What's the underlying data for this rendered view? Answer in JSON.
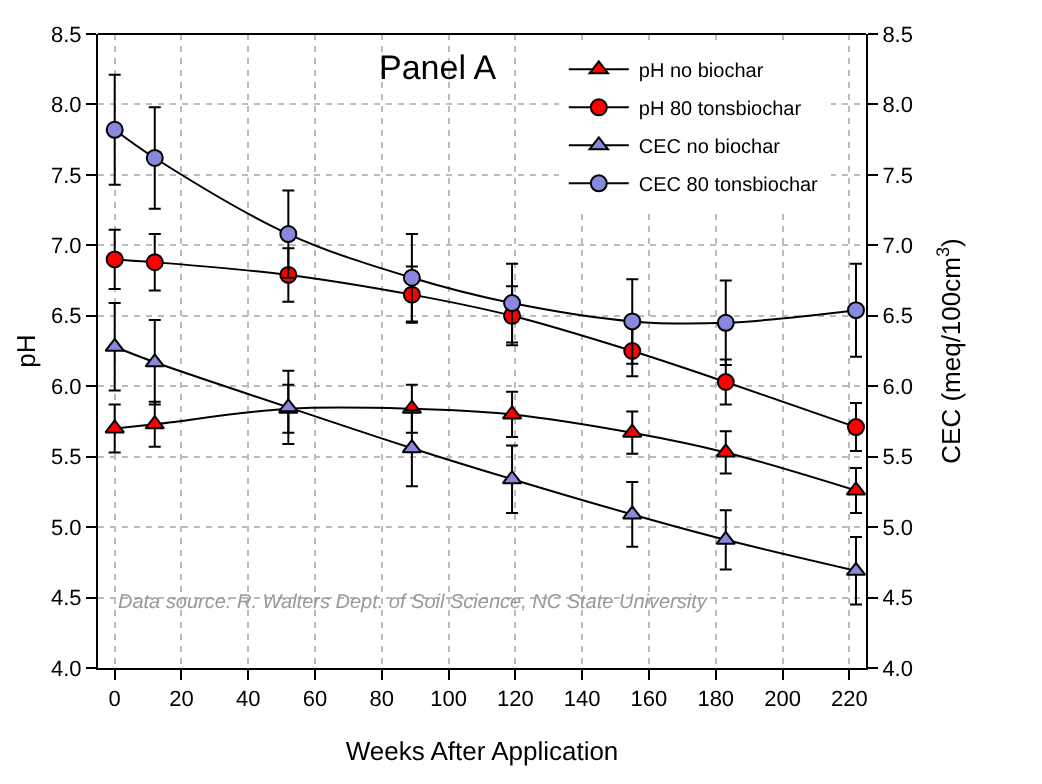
{
  "chart_data": {
    "type": "line",
    "title": "Panel A",
    "xlabel": "Weeks After Application",
    "ylabel": "pH",
    "y2label": "CEC (meq/100cm$^{3}$)",
    "x": [
      0,
      12,
      52,
      89,
      119,
      155,
      183,
      222
    ],
    "series": [
      {
        "name": "pH no biochar",
        "color": "#ff0000",
        "marker": "triangle",
        "values": [
          5.7,
          5.73,
          5.84,
          5.84,
          5.8,
          5.67,
          5.53,
          5.26
        ],
        "errors": [
          0.17,
          0.16,
          0.17,
          0.17,
          0.16,
          0.15,
          0.15,
          0.16
        ]
      },
      {
        "name": "pH 80 tonsbiochar",
        "color": "#ff0000",
        "marker": "circle",
        "values": [
          6.9,
          6.88,
          6.79,
          6.65,
          6.5,
          6.25,
          6.03,
          5.71
        ],
        "errors": [
          0.21,
          0.2,
          0.19,
          0.2,
          0.21,
          0.18,
          0.16,
          0.17
        ]
      },
      {
        "name": "CEC no biochar",
        "color": "#8888dd",
        "marker": "triangle",
        "axis": "y2",
        "values": [
          6.28,
          6.17,
          5.85,
          5.56,
          5.34,
          5.09,
          4.91,
          4.69
        ],
        "errors": [
          0.31,
          0.3,
          0.26,
          0.27,
          0.24,
          0.23,
          0.21,
          0.24
        ]
      },
      {
        "name": "CEC 80 tonsbiochar",
        "color": "#8888dd",
        "marker": "circle",
        "axis": "y2",
        "values": [
          7.82,
          7.62,
          7.08,
          6.77,
          6.59,
          6.46,
          6.45,
          6.54
        ],
        "errors": [
          0.39,
          0.36,
          0.31,
          0.31,
          0.28,
          0.3,
          0.3,
          0.33
        ]
      }
    ],
    "xlim": [
      -5,
      225
    ],
    "xticks": [
      0,
      20,
      40,
      60,
      80,
      100,
      120,
      140,
      160,
      180,
      200,
      220
    ],
    "ylim": [
      4.0,
      8.5
    ],
    "yticks": [
      {
        "value": 4.0,
        "label": "4.0"
      },
      {
        "value": 4.5,
        "label": "4.5"
      },
      {
        "value": 5.0,
        "label": "5.0"
      },
      {
        "value": 5.5,
        "label": "5.5"
      },
      {
        "value": 6.0,
        "label": "6.0"
      },
      {
        "value": 6.5,
        "label": "6.5"
      },
      {
        "value": 7.0,
        "label": "7.0"
      },
      {
        "value": 7.5,
        "label": "7.5"
      },
      {
        "value": 8.0,
        "label": "8.0"
      },
      {
        "value": 8.5,
        "label": "8.5"
      }
    ],
    "y2lim": [
      4.0,
      8.5
    ],
    "y2ticks": [
      {
        "value": 4.0,
        "label": "4.0"
      },
      {
        "value": 4.5,
        "label": "4.5"
      },
      {
        "value": 5.0,
        "label": "5.0"
      },
      {
        "value": 5.5,
        "label": "5.5"
      },
      {
        "value": 6.0,
        "label": "6.0"
      },
      {
        "value": 6.5,
        "label": "6.5"
      },
      {
        "value": 7.0,
        "label": "7.0"
      },
      {
        "value": 7.5,
        "label": "7.5"
      },
      {
        "value": 8.0,
        "label": "8.0"
      },
      {
        "value": 8.5,
        "label": "8.5"
      }
    ],
    "grid": true,
    "legend": "top right",
    "line_style": "solid",
    "annotations": [
      "Data source: R. Walters Dept. of Soil Science, NC State University"
    ]
  }
}
